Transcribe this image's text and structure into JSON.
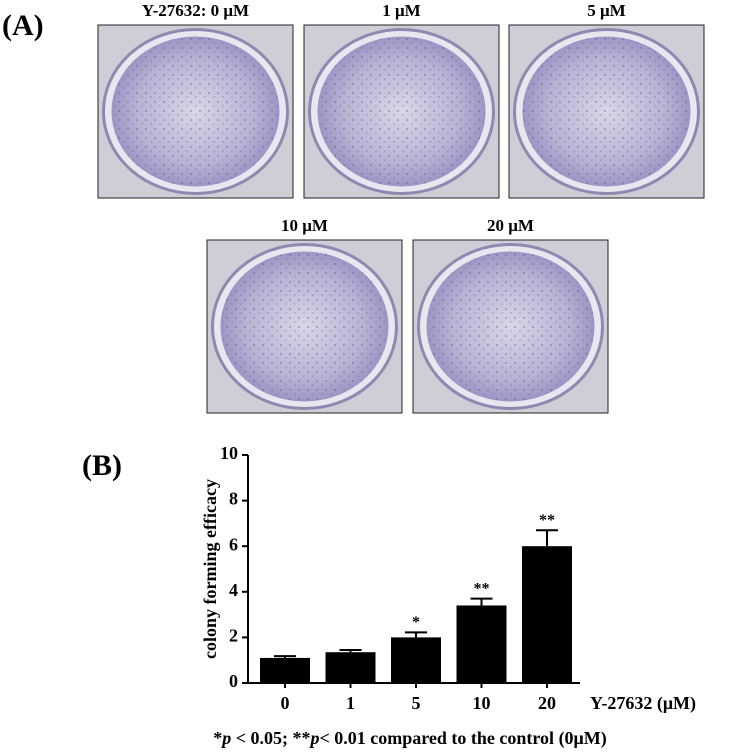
{
  "panels": {
    "a": {
      "label": "(A)",
      "wells": [
        "Y-27632:  0 μM",
        "1 μM",
        "5 μM",
        "10 μM",
        "20 μM"
      ]
    }
  },
  "chart_data": {
    "type": "bar",
    "panel_label": "(B)",
    "categories": [
      "0",
      "1",
      "5",
      "10",
      "20"
    ],
    "values": [
      1.1,
      1.35,
      2.0,
      3.4,
      6.0
    ],
    "errors": [
      0.08,
      0.1,
      0.22,
      0.3,
      0.7
    ],
    "significance": [
      null,
      null,
      "*",
      "**",
      "**"
    ],
    "color": "#000000",
    "ylim": [
      0,
      10
    ],
    "yticks": [
      0,
      2,
      4,
      6,
      8,
      10
    ],
    "y_label": "colony forming efficacy",
    "x_label": "Y-27632 (μM)",
    "footnote": [
      "*",
      "p",
      " < 0.05; **",
      "p",
      "< 0.01 compared to the control (0μM)"
    ]
  }
}
